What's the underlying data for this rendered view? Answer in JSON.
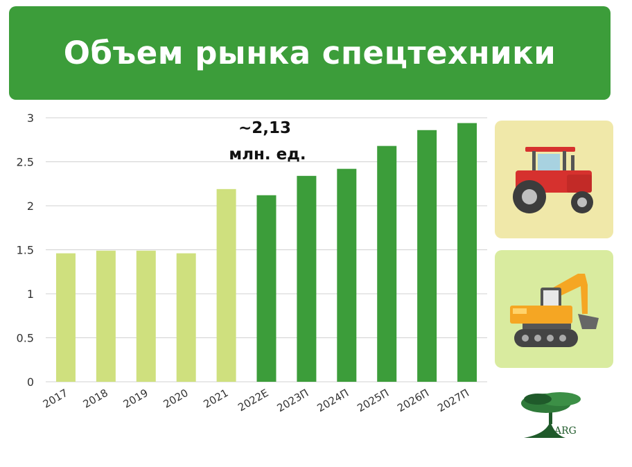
{
  "title": "Объем рынка спецтехники",
  "chart_data": {
    "type": "bar",
    "categories": [
      "2017",
      "2018",
      "2019",
      "2020",
      "2021",
      "2022E",
      "2023П",
      "2024П",
      "2025П",
      "2026П",
      "2027П"
    ],
    "values": [
      1.46,
      1.49,
      1.49,
      1.46,
      2.19,
      2.12,
      2.34,
      2.42,
      2.68,
      2.86,
      2.94
    ],
    "ylim": [
      0,
      3
    ],
    "yticks": [
      "0",
      "0.5",
      "1",
      "1.5",
      "2",
      "2.5",
      "3"
    ],
    "grid": true,
    "bar_colors": {
      "actual": "#cfe07e",
      "forecast": "#3c9d3a"
    },
    "forecast_start_index": 5,
    "annotation": {
      "line1": "~2,13",
      "line2": "млн. ед."
    }
  },
  "cards": {
    "tractor": "tractor-icon",
    "excavator": "excavator-icon"
  },
  "logo": {
    "text": "ARG"
  }
}
